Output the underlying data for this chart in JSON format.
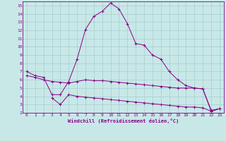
{
  "xlabel": "Windchill (Refroidissement éolien,°C)",
  "xlim": [
    -0.5,
    23.5
  ],
  "ylim": [
    2,
    15.5
  ],
  "yticks": [
    2,
    3,
    4,
    5,
    6,
    7,
    8,
    9,
    10,
    11,
    12,
    13,
    14,
    15
  ],
  "xticks": [
    0,
    1,
    2,
    3,
    4,
    5,
    6,
    7,
    8,
    9,
    10,
    11,
    12,
    13,
    14,
    15,
    16,
    17,
    18,
    19,
    20,
    21,
    22,
    23
  ],
  "background_color": "#c8e8e8",
  "grid_color": "#a8cccc",
  "line_color": "#880088",
  "curve1_x": [
    0,
    1,
    2,
    3,
    4,
    5,
    6,
    7,
    8,
    9,
    10,
    11,
    12,
    13,
    14,
    15,
    16,
    17,
    18,
    19,
    20,
    21,
    22,
    23
  ],
  "curve1_y": [
    7.0,
    6.5,
    6.3,
    4.2,
    4.2,
    5.8,
    8.5,
    12.1,
    13.7,
    14.3,
    15.3,
    14.6,
    12.8,
    10.4,
    10.2,
    9.0,
    8.5,
    7.0,
    6.0,
    5.3,
    5.0,
    4.9,
    2.2,
    2.5
  ],
  "curve2_x": [
    0,
    1,
    2,
    3,
    4,
    5,
    6,
    7,
    8,
    9,
    10,
    11,
    12,
    13,
    14,
    15,
    16,
    17,
    18,
    19,
    20,
    21,
    22,
    23
  ],
  "curve2_y": [
    6.5,
    6.3,
    6.0,
    5.8,
    5.7,
    5.6,
    5.8,
    6.0,
    5.9,
    5.9,
    5.8,
    5.7,
    5.6,
    5.5,
    5.4,
    5.3,
    5.2,
    5.1,
    5.0,
    5.0,
    5.0,
    4.9,
    2.3,
    2.5
  ],
  "curve3_x": [
    3,
    4,
    5,
    6,
    7,
    8,
    9,
    10,
    11,
    12,
    13,
    14,
    15,
    16,
    17,
    18,
    19,
    20,
    21,
    22,
    23
  ],
  "curve3_y": [
    3.8,
    3.0,
    4.2,
    4.0,
    3.9,
    3.8,
    3.7,
    3.6,
    3.5,
    3.4,
    3.3,
    3.2,
    3.1,
    3.0,
    2.9,
    2.8,
    2.7,
    2.7,
    2.6,
    2.2,
    2.5
  ]
}
